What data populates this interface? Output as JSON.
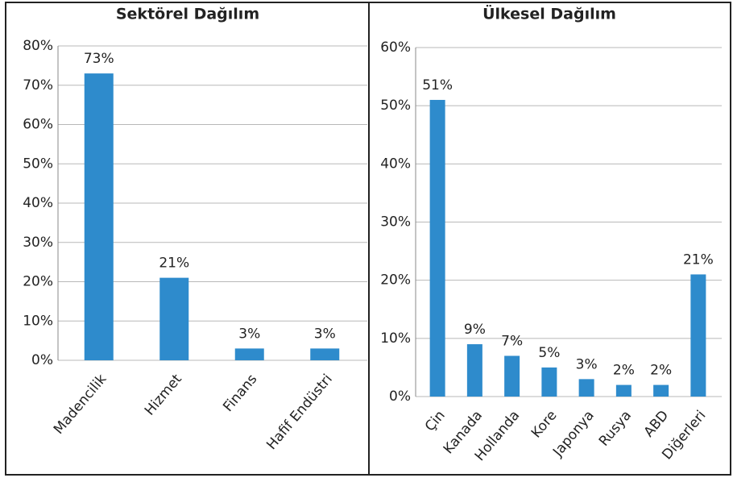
{
  "chart_data": [
    {
      "type": "bar",
      "title": "Sektörel Dağılım",
      "categories": [
        "Madencilik",
        "Hizmet",
        "Finans",
        "Hafif Endüstri"
      ],
      "values": [
        73,
        21,
        3,
        3
      ],
      "value_labels": [
        "73%",
        "21%",
        "3%",
        "3%"
      ],
      "color": "#2e8bcc",
      "ylim": [
        0,
        80
      ],
      "yticks": [
        {
          "value": 0,
          "label": "0%"
        },
        {
          "value": 10,
          "label": "10%"
        },
        {
          "value": 20,
          "label": "20%"
        },
        {
          "value": 30,
          "label": "30%"
        },
        {
          "value": 40,
          "label": "40%"
        },
        {
          "value": 50,
          "label": "50%"
        },
        {
          "value": 60,
          "label": "60%"
        },
        {
          "value": 70,
          "label": "70%"
        },
        {
          "value": 80,
          "label": "80%"
        }
      ],
      "grid": true
    },
    {
      "type": "bar",
      "title": "Ülkesel Dağılım",
      "categories": [
        "Çin",
        "Kanada",
        "Hollanda",
        "Kore",
        "Japonya",
        "Rusya",
        "ABD",
        "Diğerleri"
      ],
      "values": [
        51,
        9,
        7,
        5,
        3,
        2,
        2,
        21
      ],
      "value_labels": [
        "51%",
        "9%",
        "7%",
        "5%",
        "3%",
        "2%",
        "2%",
        "21%"
      ],
      "color": "#2e8bcc",
      "ylim": [
        0,
        60
      ],
      "yticks": [
        {
          "value": 0,
          "label": "0%"
        },
        {
          "value": 10,
          "label": "10%"
        },
        {
          "value": 20,
          "label": "20%"
        },
        {
          "value": 30,
          "label": "30%"
        },
        {
          "value": 40,
          "label": "40%"
        },
        {
          "value": 50,
          "label": "50%"
        },
        {
          "value": 60,
          "label": "60%"
        }
      ],
      "grid": true
    }
  ]
}
